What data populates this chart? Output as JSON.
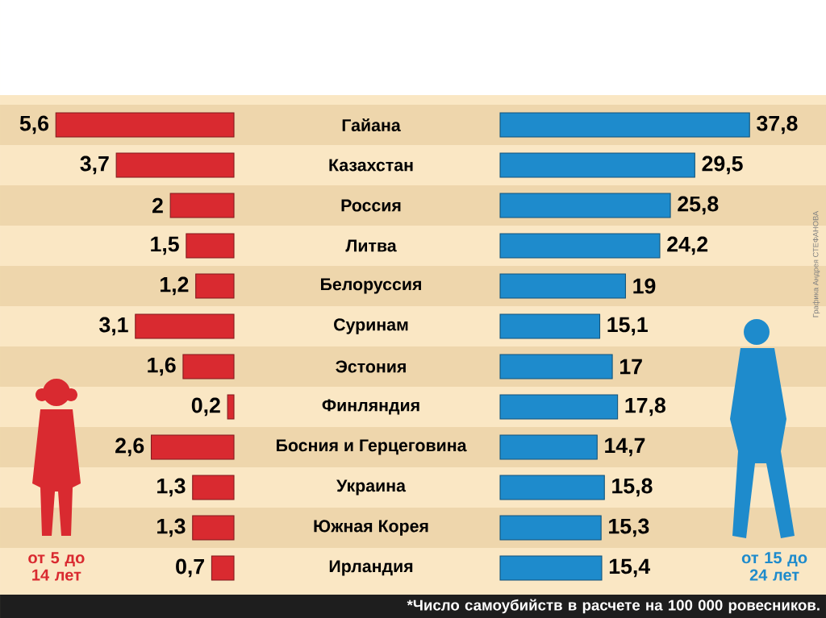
{
  "chart_data": [
    {
      "type": "bar",
      "orientation": "horizontal",
      "tick_labels": "y",
      "categories": [
        "Гайана",
        "Казахстан",
        "Россия",
        "Литва",
        "Белоруссия",
        "Суринам",
        "Эстония",
        "Финляндия",
        "Босния и Герцеговина",
        "Украина",
        "Южная Корея",
        "Ирландия"
      ],
      "series": [
        {
          "name": "от 5 до 14 лет",
          "color": "#d92a30",
          "values": [
            5.6,
            3.7,
            2,
            1.5,
            1.2,
            3.1,
            1.6,
            0.2,
            2.6,
            1.3,
            1.3,
            0.7
          ],
          "value_labels": [
            "5,6",
            "3,7",
            "2",
            "1,5",
            "1,2",
            "3,1",
            "1,6",
            "0,2",
            "2,6",
            "1,3",
            "1,3",
            "0,7"
          ]
        }
      ]
    },
    {
      "type": "bar",
      "orientation": "horizontal",
      "tick_labels": false,
      "series": [
        {
          "name": "от 15 до 24 лет",
          "color": "#1e8bcc",
          "values": [
            37.8,
            29.5,
            25.8,
            24.2,
            19,
            15.1,
            17,
            17.8,
            14.7,
            15.8,
            15.3,
            15.4
          ],
          "value_labels": [
            "37,8",
            "29,5",
            "25,8",
            "24,2",
            "19",
            "15,1",
            "17",
            "17,8",
            "14,7",
            "15,8",
            "15,3",
            "15,4"
          ]
        }
      ],
      "annotations": [
        "*Число самоубийств в расчете на 100 000 ровесников.",
        "Графика Андрея СТЕФАНОВА"
      ]
    }
  ]
}
